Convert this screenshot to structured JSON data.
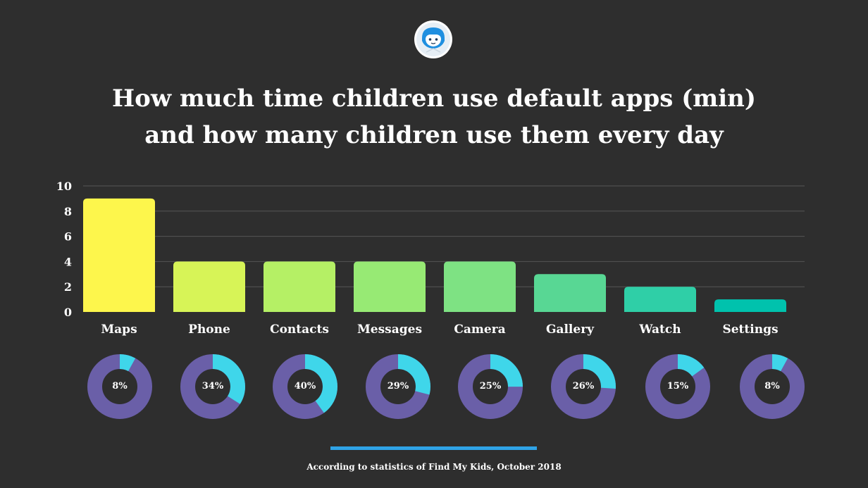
{
  "title_line1": "How much time children use default apps (min)",
  "title_line2": "and how many children use them every day",
  "footer": "According to statistics of Find My Kids, October 2018",
  "colors": {
    "background": "#2e2e2e",
    "donut_track": "#6a5fa8",
    "donut_fill": "#3fd6ea",
    "rule": "#2fa3e6",
    "gridline": "#555555",
    "bars": [
      "#fdf64c",
      "#d7f457",
      "#b5f065",
      "#97ea74",
      "#7ee283",
      "#58d794",
      "#2fcfa7",
      "#00c2ad"
    ]
  },
  "chart_data": [
    {
      "type": "bar",
      "title": "How much time children use default apps (min)",
      "categories": [
        "Maps",
        "Phone",
        "Contacts",
        "Messages",
        "Camera",
        "Gallery",
        "Watch",
        "Settings"
      ],
      "values": [
        9,
        4,
        4,
        4,
        4,
        3,
        2,
        1
      ],
      "ylim": [
        0,
        10
      ],
      "yticks": [
        0,
        2,
        4,
        6,
        8,
        10
      ],
      "grid": true,
      "xlabel": "",
      "ylabel": ""
    },
    {
      "type": "pie",
      "title": "how many children use them every day",
      "categories": [
        "Maps",
        "Phone",
        "Contacts",
        "Messages",
        "Camera",
        "Gallery",
        "Watch",
        "Settings"
      ],
      "values": [
        8,
        34,
        40,
        29,
        25,
        26,
        15,
        8
      ],
      "labels": [
        "8%",
        "34%",
        "40%",
        "29%",
        "25%",
        "26%",
        "15%",
        "8%"
      ]
    }
  ]
}
